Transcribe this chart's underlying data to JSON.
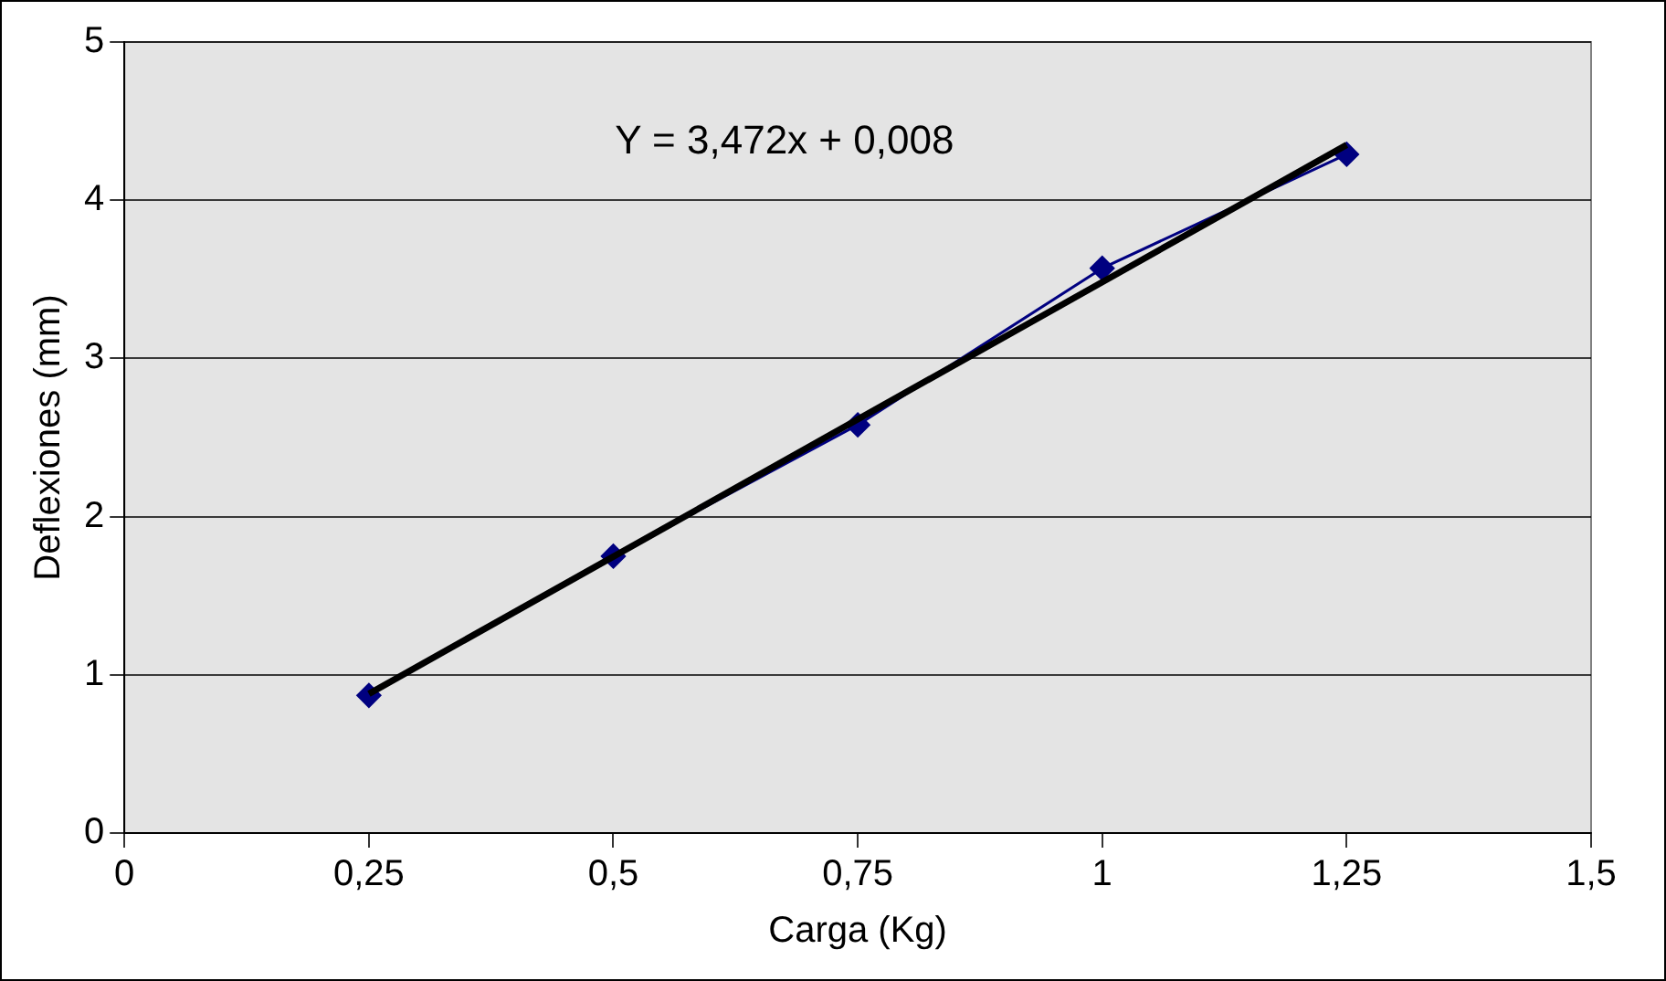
{
  "chart_data": {
    "type": "line",
    "xlabel": "Carga (Kg)",
    "ylabel": "Deflexiones (mm)",
    "x": [
      0.25,
      0.5,
      0.75,
      1,
      1.25
    ],
    "series": [
      {
        "type": "line",
        "color": "#000080",
        "marker": "diamond",
        "values": [
          0.87,
          1.75,
          2.58,
          3.57,
          4.29
        ]
      },
      {
        "type": "line",
        "color": "#000000",
        "marker": "none",
        "x": [
          0.25,
          1.25
        ],
        "values": [
          0.88,
          4.35
        ]
      }
    ],
    "xlim": [
      0,
      1.5
    ],
    "xticks": [
      0,
      {
        "value": 0.25,
        "label": "0,25"
      },
      {
        "value": 0.5,
        "label": "0,5"
      },
      {
        "value": 0.75,
        "label": "0,75"
      },
      1,
      {
        "value": 1.25,
        "label": "1,25"
      },
      {
        "value": 1.5,
        "label": "1,5"
      }
    ],
    "ylim": [
      0,
      5
    ],
    "yticks": [
      0,
      1,
      2,
      3,
      4,
      5
    ],
    "grid": "y",
    "legend": false,
    "annotations": [
      "Y = 3,472x + 0,008"
    ]
  }
}
